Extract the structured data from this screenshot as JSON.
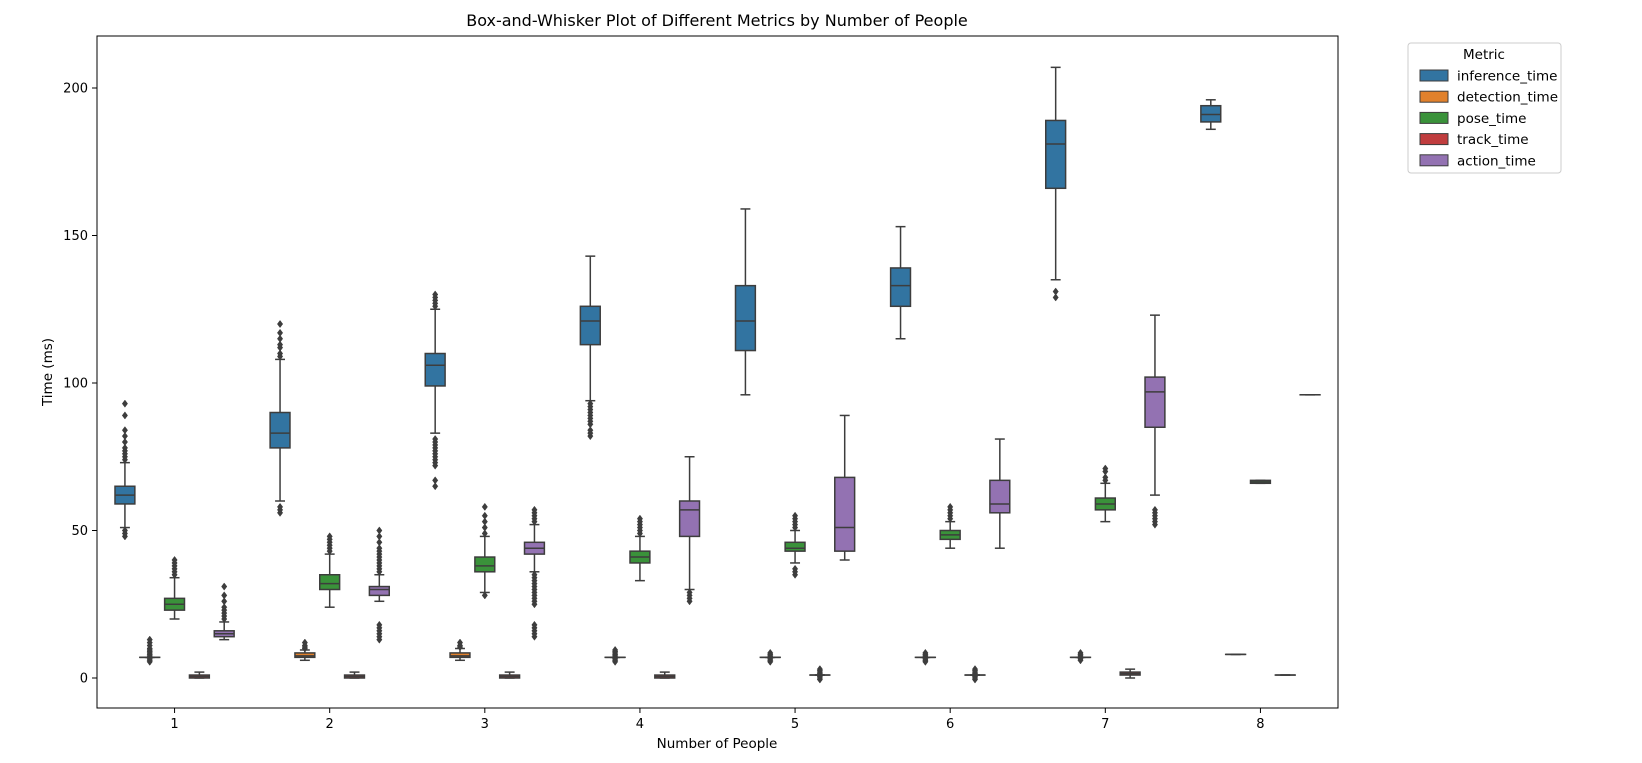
{
  "chart_data": {
    "type": "box",
    "title": "Box-and-Whisker Plot of Different Metrics by Number of People",
    "xlabel": "Number of People",
    "ylabel": "Time (ms)",
    "ylim": [
      -10,
      218
    ],
    "yticks": [
      0,
      50,
      100,
      150,
      200
    ],
    "categories": [
      "1",
      "2",
      "3",
      "4",
      "5",
      "6",
      "7",
      "8"
    ],
    "legend": {
      "title": "Metric",
      "position": "outside-top-right"
    },
    "series": [
      {
        "name": "inference_time",
        "color": "#3274a1",
        "boxes": [
          {
            "whislo": 51,
            "q1": 59,
            "med": 62,
            "q3": 65,
            "whishi": 73,
            "fliers": [
              48,
              49,
              50,
              74,
              75,
              76,
              77,
              78,
              80,
              82,
              84,
              89,
              93
            ]
          },
          {
            "whislo": 60,
            "q1": 78,
            "med": 83,
            "q3": 90,
            "whishi": 108,
            "fliers": [
              56,
              57,
              58,
              109,
              110,
              112,
              113,
              115,
              117,
              120
            ]
          },
          {
            "whislo": 83,
            "q1": 99,
            "med": 106,
            "q3": 110,
            "whishi": 125,
            "fliers": [
              65,
              67,
              72,
              73,
              74,
              75,
              76,
              77,
              78,
              79,
              80,
              81,
              126,
              127,
              128,
              129,
              130
            ]
          },
          {
            "whislo": 94,
            "q1": 113,
            "med": 121,
            "q3": 126,
            "whishi": 143,
            "fliers": [
              82,
              83,
              84,
              86,
              87,
              88,
              89,
              90,
              91,
              92,
              93
            ]
          },
          {
            "whislo": 96,
            "q1": 111,
            "med": 121,
            "q3": 133,
            "whishi": 159,
            "fliers": []
          },
          {
            "whislo": 115,
            "q1": 126,
            "med": 133,
            "q3": 139,
            "whishi": 153,
            "fliers": []
          },
          {
            "whislo": 135,
            "q1": 166,
            "med": 181,
            "q3": 189,
            "whishi": 207,
            "fliers": [
              129,
              131
            ]
          },
          {
            "whislo": 186,
            "q1": 188.5,
            "med": 191,
            "q3": 194,
            "whishi": 196,
            "fliers": []
          }
        ]
      },
      {
        "name": "detection_time",
        "color": "#e1812c",
        "boxes": [
          {
            "whislo": 7,
            "q1": 7,
            "med": 7,
            "q3": 7,
            "whishi": 7,
            "fliers": [
              5.5,
              6,
              6.5,
              7.5,
              8,
              8.5,
              9,
              9.5,
              10,
              11,
              12,
              13
            ]
          },
          {
            "whislo": 6,
            "q1": 7,
            "med": 7.5,
            "q3": 8.5,
            "whishi": 9.5,
            "fliers": [
              10,
              10.5,
              11,
              12
            ]
          },
          {
            "whislo": 6,
            "q1": 7,
            "med": 7.5,
            "q3": 8.5,
            "whishi": 10,
            "fliers": [
              10.5,
              11,
              12
            ]
          },
          {
            "whislo": 7,
            "q1": 7,
            "med": 7,
            "q3": 7,
            "whishi": 7,
            "fliers": [
              5.5,
              6,
              6.5,
              7.5,
              8,
              8.5,
              9,
              9.5
            ]
          },
          {
            "whislo": 7,
            "q1": 7,
            "med": 7,
            "q3": 7,
            "whishi": 7,
            "fliers": [
              5.5,
              6,
              6.5,
              7.5,
              8,
              8.5
            ]
          },
          {
            "whislo": 7,
            "q1": 7,
            "med": 7,
            "q3": 7,
            "whishi": 7,
            "fliers": [
              5.5,
              6,
              6.5,
              7.5,
              8,
              8.5
            ]
          },
          {
            "whislo": 7,
            "q1": 7,
            "med": 7,
            "q3": 7,
            "whishi": 7,
            "fliers": [
              6,
              6.5,
              7.5,
              8,
              8.5
            ]
          },
          {
            "whislo": 8,
            "q1": 8,
            "med": 8,
            "q3": 8,
            "whishi": 8,
            "fliers": []
          }
        ]
      },
      {
        "name": "pose_time",
        "color": "#3a923a",
        "boxes": [
          {
            "whislo": 20,
            "q1": 23,
            "med": 25,
            "q3": 27,
            "whishi": 34,
            "fliers": [
              35,
              36,
              37,
              38,
              39,
              40
            ]
          },
          {
            "whislo": 24,
            "q1": 30,
            "med": 32,
            "q3": 35,
            "whishi": 42,
            "fliers": [
              43,
              44,
              45,
              46,
              47,
              48
            ]
          },
          {
            "whislo": 29,
            "q1": 36,
            "med": 38,
            "q3": 41,
            "whishi": 48,
            "fliers": [
              28,
              49,
              51,
              53,
              55,
              58
            ]
          },
          {
            "whislo": 33,
            "q1": 39,
            "med": 41,
            "q3": 43,
            "whishi": 48,
            "fliers": [
              49,
              50,
              51,
              52,
              53,
              54
            ]
          },
          {
            "whislo": 39,
            "q1": 43,
            "med": 44,
            "q3": 46,
            "whishi": 50,
            "fliers": [
              35,
              36,
              37,
              51,
              52,
              53,
              54,
              55
            ]
          },
          {
            "whislo": 44,
            "q1": 47,
            "med": 48.5,
            "q3": 50,
            "whishi": 53,
            "fliers": [
              54,
              55,
              56,
              57,
              58
            ]
          },
          {
            "whislo": 53,
            "q1": 57,
            "med": 59,
            "q3": 61,
            "whishi": 66,
            "fliers": [
              67,
              68,
              70,
              71
            ]
          },
          {
            "whislo": 66,
            "q1": 66,
            "med": 66.5,
            "q3": 67,
            "whishi": 67,
            "fliers": []
          }
        ]
      },
      {
        "name": "track_time",
        "color": "#c03d3e",
        "boxes": [
          {
            "whislo": 0,
            "q1": 0,
            "med": 0.5,
            "q3": 1,
            "whishi": 2,
            "fliers": []
          },
          {
            "whislo": 0,
            "q1": 0,
            "med": 0.5,
            "q3": 1,
            "whishi": 2,
            "fliers": []
          },
          {
            "whislo": 0,
            "q1": 0,
            "med": 0.5,
            "q3": 1,
            "whishi": 2,
            "fliers": []
          },
          {
            "whislo": 0,
            "q1": 0,
            "med": 0.5,
            "q3": 1,
            "whishi": 2,
            "fliers": []
          },
          {
            "whislo": 1,
            "q1": 1,
            "med": 1,
            "q3": 1,
            "whishi": 1,
            "fliers": [
              -0.5,
              0,
              0.5,
              1.5,
              2,
              2.5,
              3
            ]
          },
          {
            "whislo": 1,
            "q1": 1,
            "med": 1,
            "q3": 1,
            "whishi": 1,
            "fliers": [
              -0.5,
              0,
              0.5,
              1.5,
              2,
              2.5,
              3
            ]
          },
          {
            "whislo": 0,
            "q1": 1,
            "med": 1.5,
            "q3": 2,
            "whishi": 3,
            "fliers": []
          },
          {
            "whislo": 1,
            "q1": 1,
            "med": 1,
            "q3": 1,
            "whishi": 1,
            "fliers": []
          }
        ]
      },
      {
        "name": "action_time",
        "color": "#9372b2",
        "boxes": [
          {
            "whislo": 13,
            "q1": 14,
            "med": 15,
            "q3": 16,
            "whishi": 19,
            "fliers": [
              20,
              21,
              22,
              23,
              24,
              26,
              28,
              31
            ]
          },
          {
            "whislo": 26,
            "q1": 28,
            "med": 30,
            "q3": 31,
            "whishi": 35,
            "fliers": [
              13,
              14,
              15,
              16,
              17,
              18,
              36,
              37,
              38,
              39,
              40,
              41,
              42,
              43,
              44,
              46,
              48,
              50
            ]
          },
          {
            "whislo": 36,
            "q1": 42,
            "med": 44,
            "q3": 46,
            "whishi": 52,
            "fliers": [
              14,
              15,
              16,
              17,
              18,
              25,
              26,
              27,
              28,
              29,
              30,
              31,
              32,
              33,
              34,
              35,
              53,
              54,
              55,
              56,
              57
            ]
          },
          {
            "whislo": 30,
            "q1": 48,
            "med": 57,
            "q3": 60,
            "whishi": 75,
            "fliers": [
              26,
              27,
              28,
              29
            ]
          },
          {
            "whislo": 40,
            "q1": 43,
            "med": 51,
            "q3": 68,
            "whishi": 89,
            "fliers": []
          },
          {
            "whislo": 44,
            "q1": 56,
            "med": 59,
            "q3": 67,
            "whishi": 81,
            "fliers": []
          },
          {
            "whislo": 62,
            "q1": 85,
            "med": 97,
            "q3": 102,
            "whishi": 123,
            "fliers": [
              52,
              53,
              54,
              55,
              56,
              57
            ]
          },
          {
            "whislo": 96,
            "q1": 96,
            "med": 96,
            "q3": 96,
            "whishi": 96,
            "fliers": []
          }
        ]
      }
    ]
  }
}
